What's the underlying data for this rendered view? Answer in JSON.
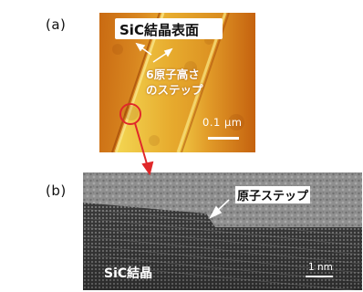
{
  "panels": {
    "a": {
      "label": "(a)",
      "title": "SiC結晶表面",
      "annotation_line1": "6原子高さ",
      "annotation_line2": "のステップ",
      "scale_bar": "0.1 μm"
    },
    "b": {
      "label": "(b)",
      "step_label": "原子ステップ",
      "crystal_label": "SiC結晶",
      "scale_bar": "1 nm"
    }
  },
  "colors": {
    "afm_dark": "#b24a08",
    "afm_mid": "#d98a1e",
    "afm_light": "#f2d04a",
    "arrow_red": "#e0282a",
    "tem_gray": "#8a8a8a"
  }
}
